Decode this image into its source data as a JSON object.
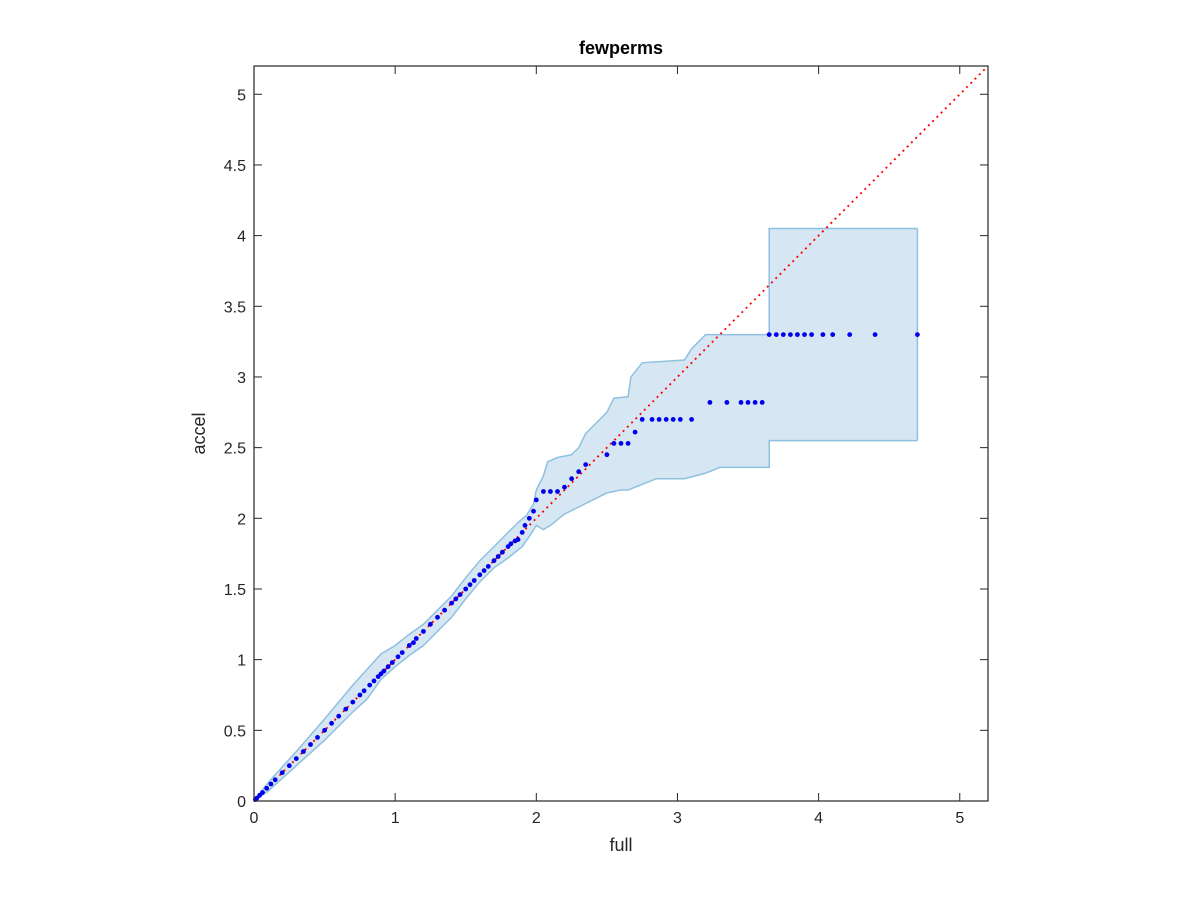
{
  "chart_data": {
    "type": "scatter",
    "title": "fewperms",
    "xlabel": "full",
    "ylabel": "accel",
    "xlim": [
      0,
      5.2
    ],
    "ylim": [
      0,
      5.2
    ],
    "xticks": [
      "0",
      "1",
      "2",
      "3",
      "4",
      "5"
    ],
    "yticks": [
      "0",
      "0.5",
      "1",
      "1.5",
      "2",
      "2.5",
      "3",
      "3.5",
      "4",
      "4.5",
      "5"
    ],
    "grid": false,
    "colors": {
      "points": "#0000ee",
      "reference_line": "#ff0000",
      "band_fill": "#d6e7f3",
      "band_edge": "#8fc0df",
      "axes": "#262626"
    },
    "reference_line": {
      "name": "y = x",
      "x": [
        0,
        5.2
      ],
      "y": [
        0,
        5.2
      ],
      "style": "dotted"
    },
    "confidence_band": {
      "upper": [
        [
          0,
          0
        ],
        [
          0.1,
          0.13
        ],
        [
          0.3,
          0.35
        ],
        [
          0.5,
          0.58
        ],
        [
          0.7,
          0.82
        ],
        [
          0.8,
          0.93
        ],
        [
          0.9,
          1.04
        ],
        [
          1.0,
          1.1
        ],
        [
          1.1,
          1.18
        ],
        [
          1.2,
          1.25
        ],
        [
          1.3,
          1.35
        ],
        [
          1.4,
          1.45
        ],
        [
          1.5,
          1.58
        ],
        [
          1.6,
          1.7
        ],
        [
          1.7,
          1.8
        ],
        [
          1.8,
          1.9
        ],
        [
          1.87,
          1.97
        ],
        [
          1.93,
          2.02
        ],
        [
          1.98,
          2.1
        ],
        [
          2.0,
          2.2
        ],
        [
          2.05,
          2.3
        ],
        [
          2.08,
          2.4
        ],
        [
          2.15,
          2.43
        ],
        [
          2.25,
          2.45
        ],
        [
          2.3,
          2.5
        ],
        [
          2.35,
          2.6
        ],
        [
          2.4,
          2.65
        ],
        [
          2.5,
          2.75
        ],
        [
          2.55,
          2.85
        ],
        [
          2.65,
          2.86
        ],
        [
          2.67,
          3.0
        ],
        [
          2.75,
          3.1
        ],
        [
          3.05,
          3.12
        ],
        [
          3.1,
          3.2
        ],
        [
          3.2,
          3.3
        ],
        [
          3.65,
          3.3
        ],
        [
          3.65,
          4.05
        ],
        [
          4.7,
          4.05
        ]
      ],
      "lower": [
        [
          0,
          0
        ],
        [
          0.1,
          0.07
        ],
        [
          0.3,
          0.25
        ],
        [
          0.5,
          0.43
        ],
        [
          0.7,
          0.63
        ],
        [
          0.8,
          0.72
        ],
        [
          0.9,
          0.86
        ],
        [
          1.0,
          0.95
        ],
        [
          1.1,
          1.03
        ],
        [
          1.2,
          1.1
        ],
        [
          1.3,
          1.2
        ],
        [
          1.4,
          1.3
        ],
        [
          1.5,
          1.43
        ],
        [
          1.6,
          1.55
        ],
        [
          1.7,
          1.65
        ],
        [
          1.8,
          1.72
        ],
        [
          1.9,
          1.8
        ],
        [
          1.97,
          1.9
        ],
        [
          2.0,
          1.95
        ],
        [
          2.05,
          1.92
        ],
        [
          2.1,
          1.95
        ],
        [
          2.2,
          2.03
        ],
        [
          2.3,
          2.08
        ],
        [
          2.4,
          2.13
        ],
        [
          2.5,
          2.18
        ],
        [
          2.6,
          2.2
        ],
        [
          2.65,
          2.2
        ],
        [
          2.7,
          2.22
        ],
        [
          2.8,
          2.26
        ],
        [
          2.85,
          2.28
        ],
        [
          3.05,
          2.28
        ],
        [
          3.2,
          2.32
        ],
        [
          3.3,
          2.36
        ],
        [
          3.65,
          2.36
        ],
        [
          3.65,
          2.55
        ],
        [
          4.7,
          2.55
        ]
      ]
    },
    "points": {
      "x": [
        0.01,
        0.02,
        0.04,
        0.06,
        0.09,
        0.12,
        0.15,
        0.2,
        0.25,
        0.3,
        0.35,
        0.4,
        0.45,
        0.5,
        0.55,
        0.6,
        0.65,
        0.7,
        0.75,
        0.78,
        0.82,
        0.85,
        0.88,
        0.9,
        0.92,
        0.95,
        0.98,
        1.02,
        1.05,
        1.1,
        1.13,
        1.15,
        1.2,
        1.25,
        1.3,
        1.35,
        1.4,
        1.43,
        1.46,
        1.5,
        1.53,
        1.56,
        1.6,
        1.63,
        1.66,
        1.7,
        1.73,
        1.76,
        1.8,
        1.82,
        1.85,
        1.87,
        1.9,
        1.92,
        1.95,
        1.98,
        2.0,
        2.05,
        2.1,
        2.15,
        2.2,
        2.25,
        2.3,
        2.35,
        2.5,
        2.55,
        2.6,
        2.65,
        2.7,
        2.75,
        2.82,
        2.87,
        2.92,
        2.97,
        3.02,
        3.1,
        3.23,
        3.35,
        3.45,
        3.5,
        3.55,
        3.6,
        3.65,
        3.7,
        3.75,
        3.8,
        3.85,
        3.9,
        3.95,
        4.03,
        4.1,
        4.22,
        4.4,
        4.7
      ],
      "y": [
        0.01,
        0.02,
        0.04,
        0.06,
        0.09,
        0.12,
        0.15,
        0.2,
        0.25,
        0.3,
        0.35,
        0.4,
        0.45,
        0.5,
        0.55,
        0.6,
        0.65,
        0.7,
        0.75,
        0.78,
        0.82,
        0.85,
        0.88,
        0.9,
        0.92,
        0.95,
        0.98,
        1.02,
        1.05,
        1.1,
        1.12,
        1.15,
        1.2,
        1.25,
        1.3,
        1.35,
        1.4,
        1.43,
        1.46,
        1.5,
        1.53,
        1.56,
        1.6,
        1.63,
        1.66,
        1.7,
        1.73,
        1.76,
        1.8,
        1.82,
        1.84,
        1.85,
        1.9,
        1.95,
        2.0,
        2.05,
        2.13,
        2.19,
        2.19,
        2.19,
        2.22,
        2.28,
        2.33,
        2.38,
        2.45,
        2.53,
        2.53,
        2.53,
        2.61,
        2.7,
        2.7,
        2.7,
        2.7,
        2.7,
        2.7,
        2.7,
        2.82,
        2.82,
        2.82,
        2.82,
        2.82,
        2.82,
        3.3,
        3.3,
        3.3,
        3.3,
        3.3,
        3.3,
        3.3,
        3.3,
        3.3,
        3.3,
        3.3,
        3.3
      ]
    }
  }
}
